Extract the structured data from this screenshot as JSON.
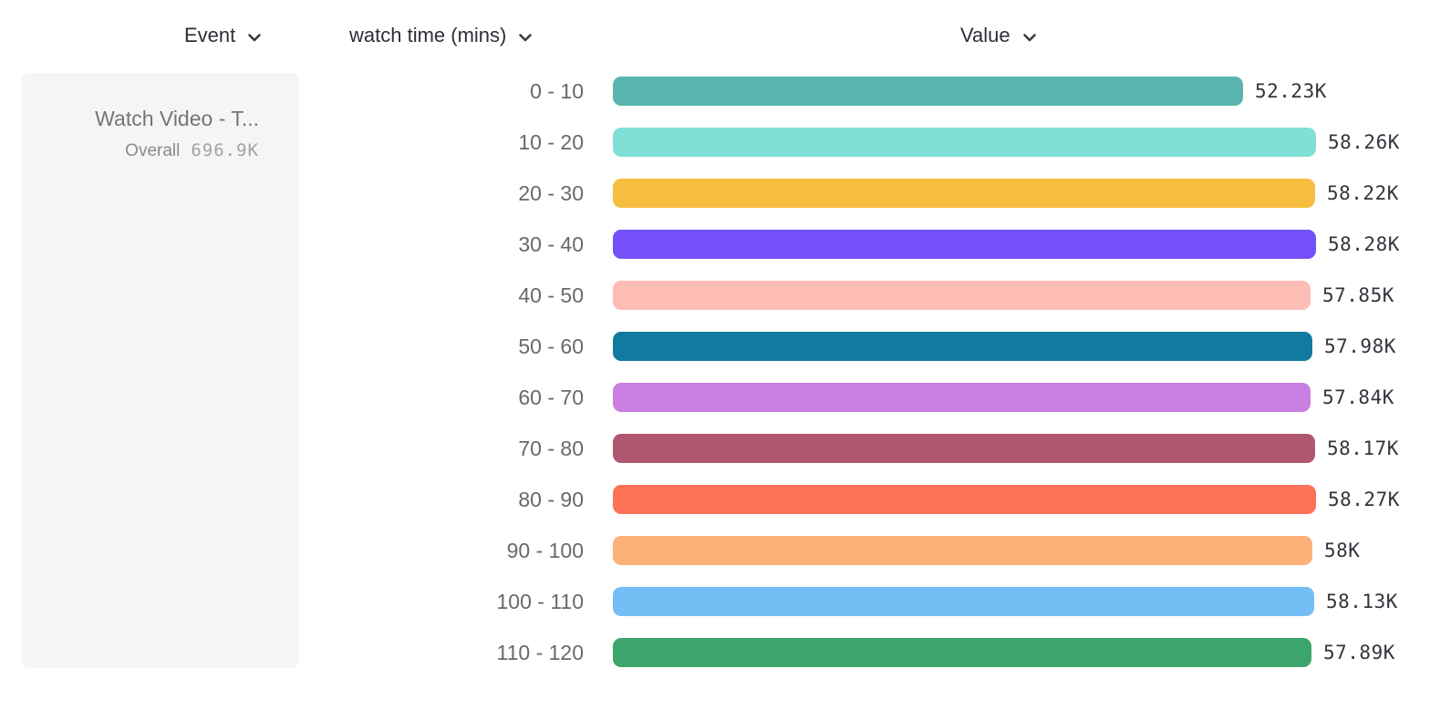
{
  "header": {
    "columns": [
      {
        "label": "Event"
      },
      {
        "label": "watch time (mins)"
      },
      {
        "label": "Value"
      }
    ],
    "chevron_icon": "chevron-down",
    "text_color": "#2e2e38"
  },
  "event_card": {
    "title": "Watch Video - T...",
    "overall_label": "Overall",
    "overall_value": "696.9K",
    "background": "#f5f5f6"
  },
  "chart_data": {
    "type": "bar",
    "orientation": "horizontal",
    "title": "",
    "xlabel": "Value",
    "ylabel": "watch time (mins)",
    "grid": false,
    "legend_position": "none",
    "categories": [
      "0 - 10",
      "10 - 20",
      "20 - 30",
      "30 - 40",
      "40 - 50",
      "50 - 60",
      "60 - 70",
      "70 - 80",
      "80 - 90",
      "90 - 100",
      "100 - 110",
      "110 - 120"
    ],
    "values_thousands": [
      52.23,
      58.26,
      58.22,
      58.28,
      57.85,
      57.98,
      57.84,
      58.17,
      58.27,
      58.0,
      58.13,
      57.89
    ],
    "value_labels": [
      "52.23K",
      "58.26K",
      "58.22K",
      "58.28K",
      "57.85K",
      "57.98K",
      "57.84K",
      "58.17K",
      "58.27K",
      "58K",
      "58.13K",
      "57.89K"
    ],
    "xlim": [
      0,
      58.28
    ],
    "bar_colors": [
      "#59b4ad",
      "#80e0d5",
      "#f7bd3e",
      "#7451f8",
      "#fdbdb4",
      "#117a9f",
      "#c87fe0",
      "#b15670",
      "#fd7257",
      "#fdb077",
      "#72bef5",
      "#3ba56c"
    ],
    "label_color": "#68686f",
    "value_color": "#34343c"
  }
}
